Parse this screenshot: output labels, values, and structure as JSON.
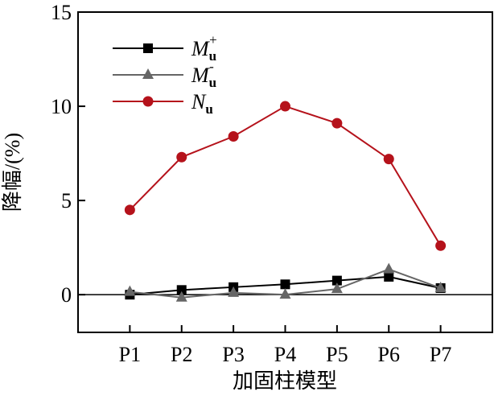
{
  "chart_data": {
    "type": "line",
    "x_label": "加固柱模型",
    "y_label": "降幅/(%)",
    "categories": [
      "P1",
      "P2",
      "P3",
      "P4",
      "P5",
      "P6",
      "P7"
    ],
    "series": [
      {
        "name": "Mu+",
        "color": "#000000",
        "marker": "square",
        "values": [
          0.0,
          0.25,
          0.4,
          0.55,
          0.75,
          0.95,
          0.35
        ]
      },
      {
        "name": "Mu-",
        "color": "#666666",
        "marker": "triangle",
        "values": [
          0.15,
          -0.15,
          0.1,
          0.0,
          0.3,
          1.35,
          0.35
        ]
      },
      {
        "name": "Nu",
        "color": "#b5121b",
        "marker": "circle",
        "values": [
          4.5,
          7.3,
          8.4,
          10.0,
          9.1,
          7.2,
          2.6
        ]
      }
    ],
    "ylim": [
      -2,
      15
    ],
    "yticks": [
      0,
      5,
      10,
      15
    ],
    "zero_line": true,
    "legend": "upper left"
  }
}
